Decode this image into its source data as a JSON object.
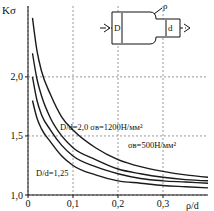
{
  "chart_data": {
    "type": "line",
    "y_label": "Kσ",
    "x_label": "ρ/d",
    "x": [
      0.01,
      0.02,
      0.03,
      0.05,
      0.075,
      0.1,
      0.15,
      0.2,
      0.25,
      0.3,
      0.35,
      0.4
    ],
    "series": [
      {
        "color": "#1a1a1a",
        "line_style": "solid",
        "marker": "none",
        "values": [
          2.5,
          2.22,
          2.05,
          1.85,
          1.66,
          1.55,
          1.4,
          1.3,
          1.24,
          1.2,
          1.17,
          1.15
        ]
      },
      {
        "color": "#1a1a1a",
        "line_style": "solid",
        "marker": "none",
        "values": [
          2.2,
          1.98,
          1.84,
          1.65,
          1.5,
          1.4,
          1.3,
          1.22,
          1.18,
          1.15,
          1.13,
          1.12
        ]
      },
      {
        "color": "#1a1a1a",
        "line_style": "solid",
        "marker": "none",
        "values": [
          2.0,
          1.8,
          1.68,
          1.55,
          1.42,
          1.33,
          1.24,
          1.18,
          1.14,
          1.12,
          1.11,
          1.1
        ]
      },
      {
        "color": "#1a1a1a",
        "line_style": "solid",
        "marker": "none",
        "values": [
          1.8,
          1.65,
          1.56,
          1.45,
          1.33,
          1.25,
          1.17,
          1.12,
          1.1,
          1.08,
          1.07,
          1.06
        ]
      }
    ],
    "xlim": [
      0,
      0.4
    ],
    "xticks": [
      0,
      {
        "value": 0.1,
        "label": "0,1"
      },
      {
        "value": 0.2,
        "label": "0,2"
      },
      {
        "value": 0.3,
        "label": "0,3"
      }
    ],
    "ylim": [
      1,
      2.6
    ],
    "yticks": [
      {
        "value": 1,
        "label": "1,0"
      },
      {
        "value": 1.5,
        "label": "1,5"
      },
      {
        "value": 2,
        "label": "2,0"
      }
    ],
    "grid": true,
    "annotations": [
      "D/d=2,0 σв=1200Н/мм²",
      "σв=500Н/мм²",
      "D/d=1,25"
    ],
    "inset_labels": [
      "D",
      "d",
      "ρ"
    ]
  }
}
